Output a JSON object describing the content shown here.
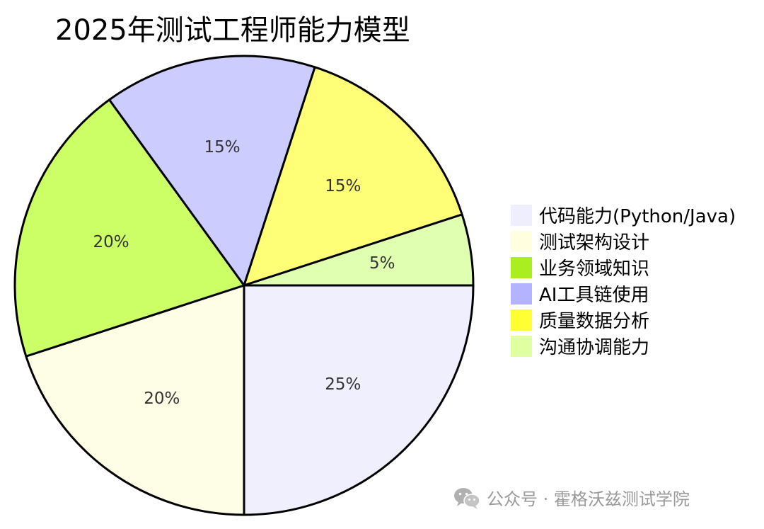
{
  "chart_data": {
    "type": "pie",
    "title": "2025年测试工程师能力模型",
    "slices": [
      {
        "label": "代码能力(Python/Java)",
        "value": 25,
        "display": "25%",
        "color": "#efeffe"
      },
      {
        "label": "测试架构设计",
        "value": 20,
        "display": "20%",
        "color": "#fefee6"
      },
      {
        "label": "业务领域知识",
        "value": 20,
        "display": "20%",
        "color": "#ccff66"
      },
      {
        "label": "AI工具链使用",
        "value": 15,
        "display": "15%",
        "color": "#ccccff"
      },
      {
        "label": "质量数据分析",
        "value": 15,
        "display": "15%",
        "color": "#ffff77"
      },
      {
        "label": "沟通协调能力",
        "value": 5,
        "display": "5%",
        "color": "#e0ffb0"
      }
    ],
    "legend_colors": [
      "#eeeeff",
      "#ffffe0",
      "#aaee22",
      "#b3b3ff",
      "#ffff33",
      "#dfffa0"
    ],
    "legend_position": "right"
  },
  "watermark": {
    "text": "公众号 · 霍格沃兹测试学院",
    "icon": "wechat-icon"
  }
}
